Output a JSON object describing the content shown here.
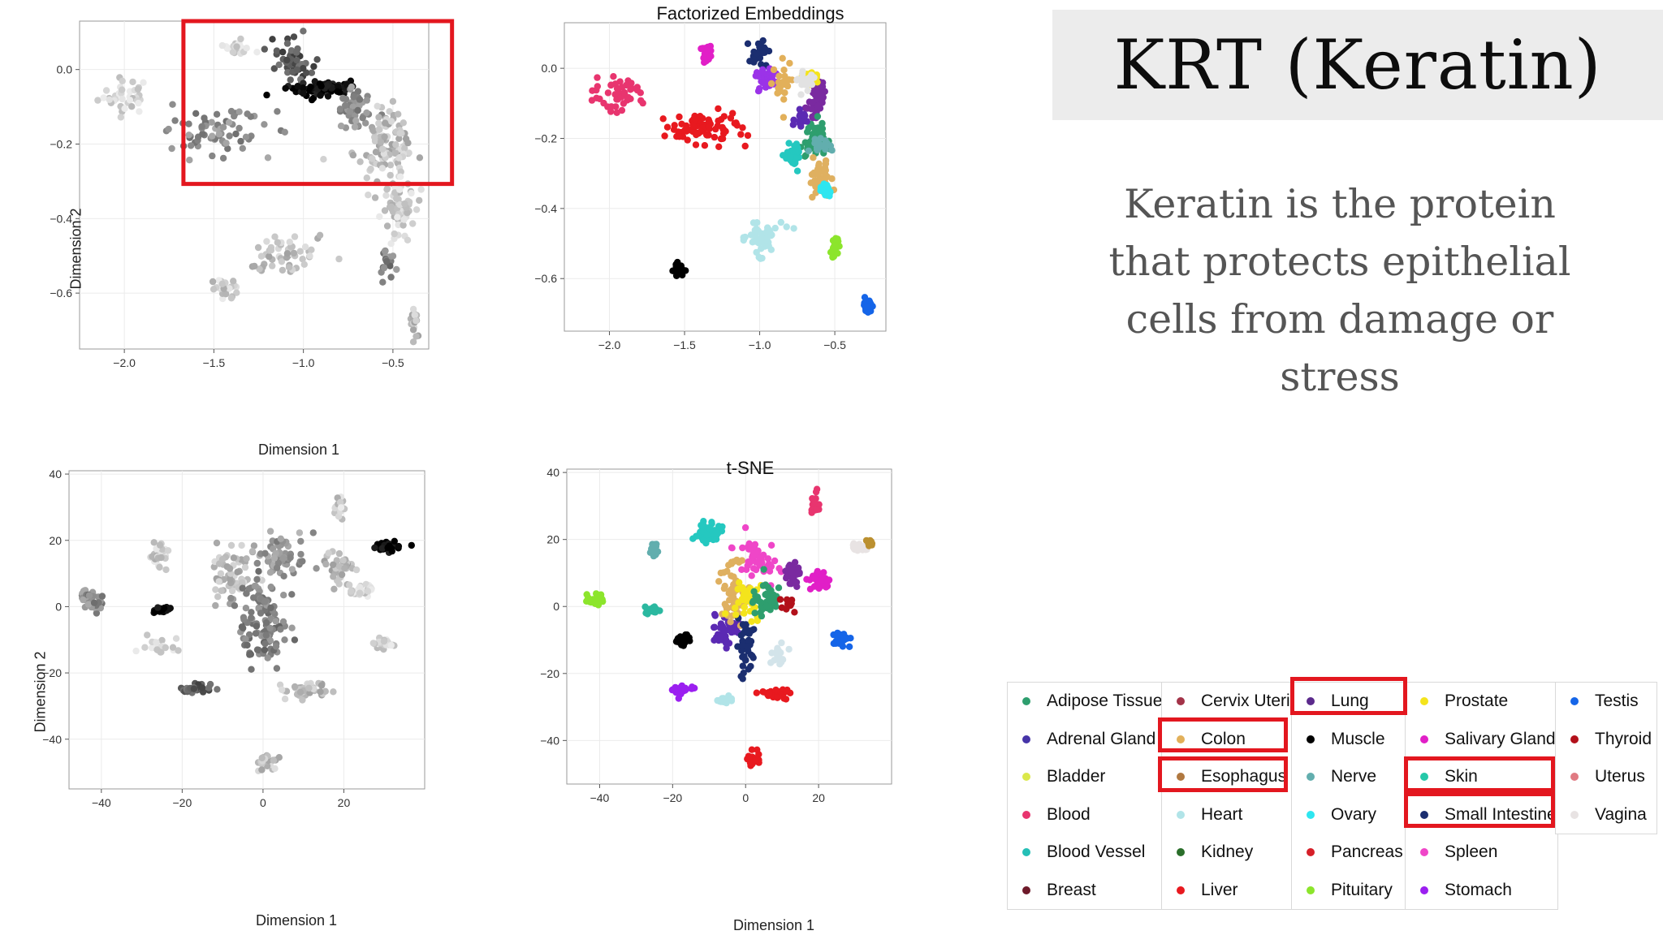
{
  "slide": {
    "title": "KRT (Keratin)",
    "description": "Keratin is the protein that protects epithelial cells from damage or stress",
    "highlight_color": "#e3171f"
  },
  "chart_data": [
    {
      "id": "fe_gray",
      "type": "scatter",
      "title": "",
      "xlabel": "Dimension 1",
      "ylabel": "Dimension 2",
      "xlim": [
        -2.25,
        -0.3
      ],
      "ylim": [
        -0.75,
        0.13
      ],
      "xticks": [
        -2.0,
        -1.5,
        -1.0,
        -0.5
      ],
      "yticks": [
        0.0,
        -0.2,
        -0.4,
        -0.6
      ],
      "grid": true,
      "color_encoding": "grayscale by KRT expression",
      "highlight_box": {
        "x": [
          -1.67,
          -0.17
        ],
        "y": [
          -0.307,
          0.13
        ]
      },
      "clusters": [
        {
          "x": -2.0,
          "y": -0.07,
          "sx": 0.12,
          "sy": 0.04,
          "n": 40,
          "shade": 0.85
        },
        {
          "x": -1.5,
          "y": -0.17,
          "sx": 0.25,
          "sy": 0.05,
          "n": 70,
          "shade": 0.55
        },
        {
          "x": -1.38,
          "y": 0.06,
          "sx": 0.07,
          "sy": 0.02,
          "n": 25,
          "shade": 0.85
        },
        {
          "x": -1.05,
          "y": 0.02,
          "sx": 0.08,
          "sy": 0.05,
          "n": 55,
          "shade": 0.35
        },
        {
          "x": -0.92,
          "y": -0.05,
          "sx": 0.14,
          "sy": 0.02,
          "n": 70,
          "shade": 0.05
        },
        {
          "x": -0.72,
          "y": -0.11,
          "sx": 0.08,
          "sy": 0.05,
          "n": 50,
          "shade": 0.55
        },
        {
          "x": -0.55,
          "y": -0.2,
          "sx": 0.14,
          "sy": 0.08,
          "n": 110,
          "shade": 0.75
        },
        {
          "x": -0.48,
          "y": -0.37,
          "sx": 0.09,
          "sy": 0.07,
          "n": 70,
          "shade": 0.8
        },
        {
          "x": -1.1,
          "y": -0.5,
          "sx": 0.18,
          "sy": 0.05,
          "n": 55,
          "shade": 0.75
        },
        {
          "x": -1.45,
          "y": -0.58,
          "sx": 0.06,
          "sy": 0.02,
          "n": 25,
          "shade": 0.8
        },
        {
          "x": -0.53,
          "y": -0.51,
          "sx": 0.04,
          "sy": 0.03,
          "n": 20,
          "shade": 0.5
        },
        {
          "x": -0.38,
          "y": -0.68,
          "sx": 0.03,
          "sy": 0.03,
          "n": 20,
          "shade": 0.75
        }
      ]
    },
    {
      "id": "fe_color",
      "type": "scatter",
      "title": "Factorized Embeddings",
      "xlabel": "",
      "ylabel": "",
      "xlim": [
        -2.3,
        -0.16
      ],
      "ylim": [
        -0.75,
        0.13
      ],
      "xticks": [
        -2.0,
        -1.5,
        -1.0,
        -0.5
      ],
      "yticks": [
        0.0,
        -0.2,
        -0.4,
        -0.6
      ],
      "grid": true,
      "clusters": [
        {
          "x": -1.95,
          "y": -0.08,
          "sx": 0.15,
          "sy": 0.04,
          "n": 45,
          "c": "#e8356f"
        },
        {
          "x": -1.35,
          "y": 0.04,
          "sx": 0.03,
          "sy": 0.02,
          "n": 25,
          "c": "#e11fc7"
        },
        {
          "x": -1.4,
          "y": -0.17,
          "sx": 0.25,
          "sy": 0.04,
          "n": 80,
          "c": "#e8191f"
        },
        {
          "x": -1.0,
          "y": 0.04,
          "sx": 0.05,
          "sy": 0.03,
          "n": 25,
          "c": "#1b2e70"
        },
        {
          "x": -0.95,
          "y": -0.03,
          "sx": 0.06,
          "sy": 0.03,
          "n": 30,
          "c": "#9b33e8"
        },
        {
          "x": -0.85,
          "y": -0.05,
          "sx": 0.05,
          "sy": 0.05,
          "n": 30,
          "c": "#e2b05a"
        },
        {
          "x": -0.62,
          "y": -0.09,
          "sx": 0.04,
          "sy": 0.05,
          "n": 40,
          "c": "#7a2aa0"
        },
        {
          "x": -0.65,
          "y": -0.02,
          "sx": 0.04,
          "sy": 0.02,
          "n": 20,
          "c": "#f4e41c"
        },
        {
          "x": -0.7,
          "y": -0.03,
          "sx": 0.05,
          "sy": 0.02,
          "n": 20,
          "c": "#e2e2e2"
        },
        {
          "x": -0.62,
          "y": -0.2,
          "sx": 0.06,
          "sy": 0.04,
          "n": 55,
          "c": "#2e9e6e"
        },
        {
          "x": -0.78,
          "y": -0.25,
          "sx": 0.05,
          "sy": 0.03,
          "n": 30,
          "c": "#25c8c0"
        },
        {
          "x": -0.72,
          "y": -0.15,
          "sx": 0.04,
          "sy": 0.02,
          "n": 15,
          "c": "#5b2ab3"
        },
        {
          "x": -0.6,
          "y": -0.32,
          "sx": 0.06,
          "sy": 0.04,
          "n": 50,
          "c": "#dfb060"
        },
        {
          "x": -0.55,
          "y": -0.35,
          "sx": 0.03,
          "sy": 0.02,
          "n": 25,
          "c": "#2ee6f0"
        },
        {
          "x": -0.6,
          "y": -0.22,
          "sx": 0.05,
          "sy": 0.02,
          "n": 20,
          "c": "#62aeae"
        },
        {
          "x": -1.0,
          "y": -0.48,
          "sx": 0.13,
          "sy": 0.04,
          "n": 45,
          "c": "#b1e4e8"
        },
        {
          "x": -1.54,
          "y": -0.58,
          "sx": 0.03,
          "sy": 0.015,
          "n": 35,
          "c": "#000000"
        },
        {
          "x": -0.5,
          "y": -0.51,
          "sx": 0.02,
          "sy": 0.02,
          "n": 30,
          "c": "#8ce52c"
        },
        {
          "x": -0.28,
          "y": -0.68,
          "sx": 0.02,
          "sy": 0.02,
          "n": 25,
          "c": "#1565e8"
        }
      ]
    },
    {
      "id": "tsne_gray",
      "type": "scatter",
      "title": "",
      "xlabel": "Dimension 1",
      "ylabel": "Dimension 2",
      "xlim": [
        -48,
        40
      ],
      "ylim": [
        -55,
        41
      ],
      "xticks": [
        -40,
        -20,
        0,
        20
      ],
      "yticks": [
        40,
        20,
        0,
        -20,
        -40
      ],
      "grid": true,
      "color_encoding": "grayscale by KRT expression",
      "clusters": [
        {
          "x": -42,
          "y": 2,
          "sx": 2.5,
          "sy": 2.5,
          "n": 40,
          "shade": 0.55
        },
        {
          "x": -26,
          "y": 15,
          "sx": 2,
          "sy": 3,
          "n": 30,
          "shade": 0.8
        },
        {
          "x": -26,
          "y": -12,
          "sx": 3,
          "sy": 2,
          "n": 25,
          "shade": 0.85
        },
        {
          "x": -25,
          "y": -1,
          "sx": 1.5,
          "sy": 1,
          "n": 25,
          "shade": 0.0
        },
        {
          "x": -17,
          "y": -25,
          "sx": 3,
          "sy": 1.5,
          "n": 30,
          "shade": 0.35
        },
        {
          "x": -7,
          "y": 10,
          "sx": 5,
          "sy": 8,
          "n": 70,
          "shade": 0.75
        },
        {
          "x": 0,
          "y": -5,
          "sx": 5,
          "sy": 12,
          "n": 120,
          "shade": 0.5
        },
        {
          "x": 5,
          "y": 15,
          "sx": 5,
          "sy": 7,
          "n": 60,
          "shade": 0.6
        },
        {
          "x": 10,
          "y": -25,
          "sx": 5,
          "sy": 2,
          "n": 40,
          "shade": 0.75
        },
        {
          "x": 19,
          "y": 12,
          "sx": 3,
          "sy": 4,
          "n": 35,
          "shade": 0.7
        },
        {
          "x": 24,
          "y": 5,
          "sx": 2.5,
          "sy": 2,
          "n": 25,
          "shade": 0.85
        },
        {
          "x": 19,
          "y": 30,
          "sx": 1,
          "sy": 3,
          "n": 20,
          "shade": 0.8
        },
        {
          "x": 31,
          "y": 18,
          "sx": 2.5,
          "sy": 1,
          "n": 35,
          "shade": 0.02
        },
        {
          "x": 29,
          "y": -11,
          "sx": 2.5,
          "sy": 1.5,
          "n": 30,
          "shade": 0.85
        },
        {
          "x": 1,
          "y": -47,
          "sx": 2,
          "sy": 2.5,
          "n": 30,
          "shade": 0.75
        }
      ]
    },
    {
      "id": "tsne_color",
      "type": "scatter",
      "title": "t-SNE",
      "xlabel": "Dimension 1",
      "ylabel": "",
      "xlim": [
        -49,
        40
      ],
      "ylim": [
        -53,
        41
      ],
      "xticks": [
        -40,
        -20,
        0,
        20
      ],
      "yticks": [
        40,
        20,
        0,
        -20,
        -40
      ],
      "grid": true,
      "clusters": [
        {
          "x": -41,
          "y": 2,
          "sx": 2,
          "sy": 1.5,
          "n": 35,
          "c": "#8ce52c"
        },
        {
          "x": -25,
          "y": 17,
          "sx": 1,
          "sy": 2,
          "n": 25,
          "c": "#62aeae"
        },
        {
          "x": -26,
          "y": -1,
          "sx": 2,
          "sy": 1,
          "n": 20,
          "c": "#2bb8a0"
        },
        {
          "x": -17,
          "y": -10,
          "sx": 1.5,
          "sy": 1.5,
          "n": 30,
          "c": "#000000"
        },
        {
          "x": -17,
          "y": -25,
          "sx": 2,
          "sy": 1.2,
          "n": 25,
          "c": "#9b1ff0"
        },
        {
          "x": -10,
          "y": 22,
          "sx": 3,
          "sy": 2.5,
          "n": 45,
          "c": "#25c8c0"
        },
        {
          "x": -6,
          "y": -8,
          "sx": 3,
          "sy": 4,
          "n": 40,
          "c": "#5b2ab3"
        },
        {
          "x": -4,
          "y": 5,
          "sx": 4,
          "sy": 8,
          "n": 55,
          "c": "#dfb060"
        },
        {
          "x": 0,
          "y": -12,
          "sx": 2,
          "sy": 8,
          "n": 45,
          "c": "#1b2e70"
        },
        {
          "x": 0,
          "y": 3,
          "sx": 3,
          "sy": 5,
          "n": 35,
          "c": "#f4e41c"
        },
        {
          "x": 3,
          "y": 14,
          "sx": 5,
          "sy": 5,
          "n": 45,
          "c": "#ef46c8"
        },
        {
          "x": 6,
          "y": 2,
          "sx": 3,
          "sy": 4,
          "n": 40,
          "c": "#2e9e6e"
        },
        {
          "x": 9,
          "y": -14,
          "sx": 2,
          "sy": 3,
          "n": 20,
          "c": "#d3e4ea"
        },
        {
          "x": 8,
          "y": -26,
          "sx": 3.5,
          "sy": 1.2,
          "n": 35,
          "c": "#e8191f"
        },
        {
          "x": 20,
          "y": 8,
          "sx": 2.5,
          "sy": 3,
          "n": 35,
          "c": "#e11fc7"
        },
        {
          "x": 13,
          "y": 10,
          "sx": 2,
          "sy": 3,
          "n": 30,
          "c": "#7a2aa0"
        },
        {
          "x": 19,
          "y": 30,
          "sx": 0.8,
          "sy": 3,
          "n": 20,
          "c": "#e8356f"
        },
        {
          "x": 31,
          "y": 18,
          "sx": 2,
          "sy": 1,
          "n": 25,
          "c": "#e8e3e3"
        },
        {
          "x": 34,
          "y": 19,
          "sx": 1,
          "sy": 1,
          "n": 10,
          "c": "#bb9030"
        },
        {
          "x": 26,
          "y": -10,
          "sx": 2,
          "sy": 1.5,
          "n": 30,
          "c": "#1565e8"
        },
        {
          "x": 2,
          "y": -46,
          "sx": 1.5,
          "sy": 2,
          "n": 30,
          "c": "#e8191f"
        },
        {
          "x": 12,
          "y": 1,
          "sx": 1.5,
          "sy": 2,
          "n": 15,
          "c": "#b2101a"
        },
        {
          "x": -5,
          "y": -28,
          "sx": 3,
          "sy": 1,
          "n": 15,
          "c": "#b1e4e8"
        }
      ]
    }
  ],
  "legend": {
    "columns": [
      [
        {
          "label": "Adipose Tissue",
          "color": "#2e9e6e"
        },
        {
          "label": "Adrenal Gland",
          "color": "#4634a8"
        },
        {
          "label": "Bladder",
          "color": "#dbe84a"
        },
        {
          "label": "Blood",
          "color": "#e8356f"
        },
        {
          "label": "Blood Vessel",
          "color": "#25bfb6"
        },
        {
          "label": "Breast",
          "color": "#6e1a2a"
        }
      ],
      [
        {
          "label": "Cervix Uteri",
          "color": "#a33348"
        },
        {
          "label": "Colon",
          "color": "#e2b05a"
        },
        {
          "label": "Esophagus",
          "color": "#b07840"
        },
        {
          "label": "Heart",
          "color": "#b1e4e8"
        },
        {
          "label": "Kidney",
          "color": "#2a6e2a"
        },
        {
          "label": "Liver",
          "color": "#e8191f"
        }
      ],
      [
        {
          "label": "Lung",
          "color": "#5b2a8c"
        },
        {
          "label": "Muscle",
          "color": "#000000"
        },
        {
          "label": "Nerve",
          "color": "#62aeae"
        },
        {
          "label": "Ovary",
          "color": "#2ee6f0"
        },
        {
          "label": "Pancreas",
          "color": "#d61f28"
        },
        {
          "label": "Pituitary",
          "color": "#8ce52c"
        }
      ],
      [
        {
          "label": "Prostate",
          "color": "#f4e41c"
        },
        {
          "label": "Salivary Gland",
          "color": "#e11fc7"
        },
        {
          "label": "Skin",
          "color": "#25c8a8"
        },
        {
          "label": "Small Intestine",
          "color": "#1b2e70"
        },
        {
          "label": "Spleen",
          "color": "#ef46c8"
        },
        {
          "label": "Stomach",
          "color": "#9b1ff0"
        }
      ],
      [
        {
          "label": "Testis",
          "color": "#1565e8"
        },
        {
          "label": "Thyroid",
          "color": "#b2101a"
        },
        {
          "label": "Uterus",
          "color": "#e07a82"
        },
        {
          "label": "Vagina",
          "color": "#e8e3e3"
        }
      ]
    ]
  }
}
